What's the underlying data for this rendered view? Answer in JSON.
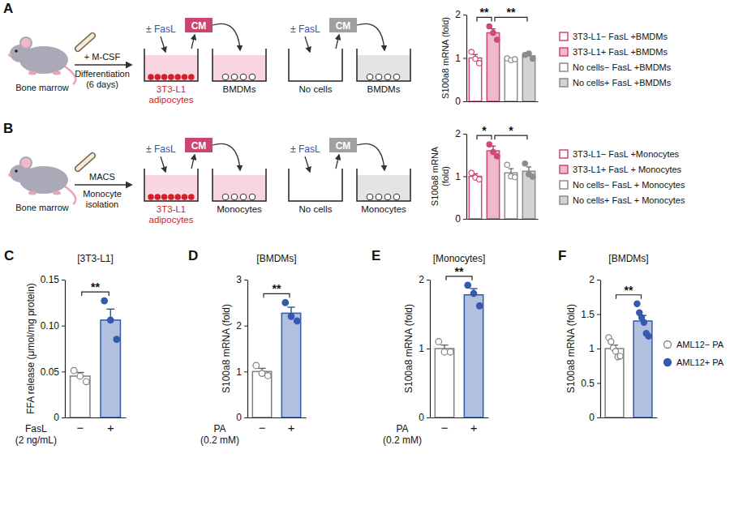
{
  "chart_data": [
    {
      "type": "bar",
      "ylabel": "S100a8 mRNA (fold)",
      "categories": [
        null,
        null,
        null,
        null
      ],
      "ylim": [
        0,
        2
      ],
      "yticks": [
        0,
        1,
        2
      ],
      "legend": "right",
      "series": [
        {
          "name": "3T3-L1− FasL +BMDMs",
          "color": "#d4457c",
          "marker": "square-open",
          "values": [
            1,
            null,
            null,
            null
          ],
          "errors": [
            0.08,
            null,
            null,
            null
          ],
          "points": [
            [
              1.14,
              0.98,
              0.88
            ],
            null,
            null,
            null
          ]
        },
        {
          "name": "3T3-L1+ FasL +BMDMs",
          "color": "#d4457c",
          "marker": "square-filled",
          "values": [
            null,
            1.58,
            null,
            null
          ],
          "errors": [
            null,
            0.09,
            null,
            null
          ],
          "points": [
            null,
            [
              1.73,
              1.58,
              1.42
            ],
            null,
            null
          ]
        },
        {
          "name": "No cells− FasL +BMDMs",
          "color": "#8c8c8c",
          "marker": "square-open",
          "values": [
            null,
            null,
            0.97,
            null
          ],
          "errors": [
            null,
            null,
            0.02,
            null
          ],
          "points": [
            null,
            null,
            [
              0.99,
              0.95,
              0.97
            ],
            null
          ]
        },
        {
          "name": "No cells+ FasL +BMDMs",
          "color": "#8c8c8c",
          "marker": "square-filled",
          "values": [
            null,
            null,
            null,
            1.05
          ],
          "errors": [
            null,
            null,
            null,
            0.04
          ],
          "points": [
            null,
            null,
            null,
            [
              1.07,
              1.1,
              0.98
            ]
          ]
        }
      ],
      "annotations": [
        {
          "from": 0,
          "to": 1,
          "label": "**"
        },
        {
          "from": 1,
          "to": 3,
          "label": "**"
        }
      ]
    },
    {
      "type": "bar",
      "ylabel": "S100a8 mRNA (fold)",
      "categories": [
        null,
        null,
        null,
        null
      ],
      "ylim": [
        0,
        2
      ],
      "yticks": [
        0,
        1,
        2
      ],
      "legend": "right",
      "series": [
        {
          "name": "3T3-L1− FasL +Monocytes",
          "color": "#d4457c",
          "marker": "square-open",
          "values": [
            1,
            null,
            null,
            null
          ],
          "errors": [
            0.06,
            null,
            null,
            null
          ],
          "points": [
            [
              1.08,
              0.97,
              0.93
            ],
            null,
            null,
            null
          ]
        },
        {
          "name": "3T3-L1+ FasL + Monocytes",
          "color": "#d4457c",
          "marker": "square-filled",
          "values": [
            null,
            1.6,
            null,
            null
          ],
          "errors": [
            null,
            0.11,
            null,
            null
          ],
          "points": [
            null,
            [
              1.75,
              1.57,
              1.47
            ],
            null,
            null
          ]
        },
        {
          "name": "No cells− FasL + Monocytes",
          "color": "#8c8c8c",
          "marker": "square-open",
          "values": [
            null,
            null,
            1.08,
            null
          ],
          "errors": [
            null,
            null,
            0.1,
            null
          ],
          "points": [
            null,
            null,
            [
              1.27,
              1,
              0.98
            ],
            null
          ]
        },
        {
          "name": "No cells+ FasL + Monocytes",
          "color": "#8c8c8c",
          "marker": "square-filled",
          "values": [
            null,
            null,
            null,
            1.12
          ],
          "errors": [
            null,
            null,
            null,
            0.1
          ],
          "points": [
            null,
            null,
            null,
            [
              1.3,
              1.05,
              0.99
            ]
          ]
        }
      ],
      "annotations": [
        {
          "from": 0,
          "to": 1,
          "label": "*"
        },
        {
          "from": 1,
          "to": 3,
          "label": "*"
        }
      ]
    },
    {
      "panel": "C",
      "type": "bar",
      "title": "[3T3-L1]",
      "ylabel": "FFA release (μmol/mg protein)",
      "xlabel": "FasL (2 ng/mL)",
      "categories": [
        "−",
        "+"
      ],
      "ylim": [
        0,
        0.15
      ],
      "yticks": [
        0,
        0.05,
        {
          "value": 0.1,
          "label": "0.10"
        },
        0.15
      ],
      "series": [
        {
          "color": "#7f7f7f",
          "marker": "open",
          "values": [
            0.045,
            null
          ],
          "errors": [
            0.004,
            null
          ],
          "points": [
            [
              0.051,
              0.045,
              0.039
            ],
            null
          ]
        },
        {
          "color": "#3559ad",
          "marker": "filled",
          "values": [
            null,
            0.106
          ],
          "errors": [
            null,
            0.012
          ],
          "points": [
            null,
            [
              0.127,
              0.106,
              0.085
            ]
          ]
        }
      ],
      "annotations": [
        {
          "from": 0,
          "to": 1,
          "label": "**"
        }
      ]
    },
    {
      "panel": "D",
      "type": "bar",
      "title": "[BMDMs]",
      "ylabel": "S100a8 mRNA (fold)",
      "xlabel": "PA (0.2 mM)",
      "categories": [
        "−",
        "+"
      ],
      "ylim": [
        0,
        3
      ],
      "yticks": [
        0,
        1,
        2,
        3
      ],
      "series": [
        {
          "color": "#7f7f7f",
          "marker": "open",
          "values": [
            1,
            null
          ],
          "errors": [
            0.07,
            null
          ],
          "points": [
            [
              1.13,
              0.96,
              0.91
            ],
            null
          ]
        },
        {
          "color": "#3559ad",
          "marker": "filled",
          "values": [
            null,
            2.27
          ],
          "errors": [
            null,
            0.13
          ],
          "points": [
            null,
            [
              2.5,
              2.2,
              2.1
            ]
          ]
        }
      ],
      "annotations": [
        {
          "from": 0,
          "to": 1,
          "label": "**"
        }
      ]
    },
    {
      "panel": "E",
      "type": "bar",
      "title": "[Monocytes]",
      "ylabel": "S100a8 mRNA (fold)",
      "xlabel": "PA (0.2 mM)",
      "categories": [
        "−",
        "+"
      ],
      "ylim": [
        0,
        2
      ],
      "yticks": [
        0,
        1,
        2
      ],
      "series": [
        {
          "color": "#7f7f7f",
          "marker": "open",
          "values": [
            1,
            null
          ],
          "errors": [
            0.05,
            null
          ],
          "points": [
            [
              1.1,
              0.95,
              0.95
            ],
            null
          ]
        },
        {
          "color": "#3559ad",
          "marker": "filled",
          "values": [
            null,
            1.78
          ],
          "errors": [
            null,
            0.09
          ],
          "points": [
            null,
            [
              1.92,
              1.8,
              1.62
            ]
          ]
        }
      ],
      "annotations": [
        {
          "from": 0,
          "to": 1,
          "label": "**"
        }
      ]
    },
    {
      "panel": "F",
      "type": "bar",
      "title": "[BMDMs]",
      "ylabel": "S100a8 mRNA (fold)",
      "categories": [
        null,
        null
      ],
      "ylim": [
        0,
        2
      ],
      "yticks": [
        0,
        0.5,
        1,
        1.5,
        2
      ],
      "legend": "right",
      "series": [
        {
          "name": "AML12− PA",
          "color": "#7f7f7f",
          "marker": "circle-open",
          "values": [
            1,
            null
          ],
          "errors": [
            0.05,
            null
          ],
          "points": [
            [
              1.16,
              1.1,
              1.01,
              0.96,
              0.88,
              0.89
            ],
            null
          ]
        },
        {
          "name": "AML12+ PA",
          "color": "#3559ad",
          "marker": "circle-filled",
          "values": [
            null,
            1.4
          ],
          "errors": [
            null,
            0.08
          ],
          "points": [
            null,
            [
              1.65,
              1.52,
              1.45,
              1.38,
              1.22,
              1.18
            ]
          ]
        }
      ],
      "annotations": [
        {
          "from": 0,
          "to": 1,
          "label": "**"
        }
      ]
    }
  ],
  "diagrams": [
    {
      "panel": "A",
      "source": "Bone marrow",
      "step_top": "+ M-CSF",
      "step_bottom": [
        "Differentiation",
        "(6 days)"
      ],
      "pairs": [
        {
          "treatment": "± FasL",
          "medium": "CM",
          "wells": [
            [
              "3T3-L1",
              "adipocytes"
            ],
            [
              "BMDMs"
            ]
          ]
        },
        {
          "treatment": "± FasL",
          "medium": "CM",
          "wells": [
            [
              "No cells"
            ],
            [
              "BMDMs"
            ]
          ]
        }
      ]
    },
    {
      "panel": "B",
      "source": "Bone marrow",
      "step_top": "MACS",
      "step_bottom": [
        "Monocyte",
        "isolation"
      ],
      "pairs": [
        {
          "treatment": "± FasL",
          "medium": "CM",
          "wells": [
            [
              "3T3-L1",
              "adipocytes"
            ],
            [
              "Monocytes"
            ]
          ]
        },
        {
          "treatment": "± FasL",
          "medium": "CM",
          "wells": [
            [
              "No cells"
            ],
            [
              "Monocytes"
            ]
          ]
        }
      ]
    }
  ]
}
